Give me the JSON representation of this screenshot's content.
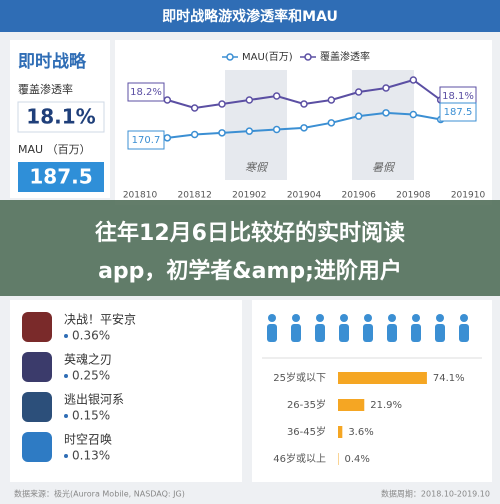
{
  "header": {
    "title": "即时战略游戏渗透率和MAU"
  },
  "summary": {
    "name": "即时战略",
    "penetration_label": "覆盖渗透率",
    "penetration": "18.1%",
    "mau_label": "MAU （百万）",
    "mau": "187.5"
  },
  "chart_data": [
    {
      "type": "line",
      "categories": [
        "201810",
        null,
        "201812",
        null,
        "201902",
        null,
        "201904",
        null,
        "201906",
        null,
        "201908",
        null,
        "201910"
      ],
      "series": [
        {
          "name": "覆盖渗透率",
          "color": "#5b4fa3",
          "values": [
            18.2,
            18.0,
            17.8,
            17.9,
            18.0,
            18.1,
            17.9,
            18.0,
            18.2,
            18.3,
            18.5,
            18.0,
            18.1
          ],
          "value_labels": [
            "18.2%",
            null,
            null,
            null,
            null,
            null,
            null,
            null,
            null,
            null,
            null,
            null,
            "18.1%"
          ]
        },
        {
          "name": "MAU(百万)",
          "color": "#3b8fd3",
          "values": [
            170.7,
            172.0,
            174.0,
            175.0,
            176.0,
            177.0,
            178.0,
            181.0,
            185.0,
            187.0,
            186.0,
            183.0,
            187.5
          ]
        }
      ],
      "annotations": [
        "寒假",
        "暑假"
      ]
    },
    {
      "type": "bar",
      "categories": [
        "25岁或以下",
        "26-35岁",
        "36-45岁",
        "46岁或以上"
      ],
      "values": [
        74.1,
        21.9,
        3.6,
        0.4
      ],
      "value_labels": [
        "74.1%",
        "21.9%",
        "3.6%",
        "0.4%"
      ],
      "color": "#f5a623"
    }
  ],
  "overlay": {
    "lines": [
      "往年12月6日比较好的实时阅读",
      "app，初学者&amp;进阶用户"
    ]
  },
  "games": [
    {
      "name": "决战！平安京",
      "share": "0.36%"
    },
    {
      "name": "英魂之刃",
      "share": "0.25%"
    },
    {
      "name": "逃出银河系",
      "share": "0.15%"
    },
    {
      "name": "时空召唤",
      "share": "0.13%"
    }
  ],
  "footer": {
    "source": "数据来源：极光(Aurora Mobile, NASDAQ: JG)",
    "period": "数据周期：2018.10-2019.10"
  }
}
